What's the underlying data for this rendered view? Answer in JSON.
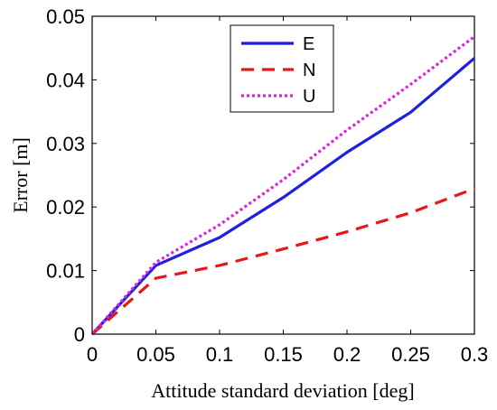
{
  "chart_data": {
    "type": "line",
    "title": "",
    "xlabel": "Attitude standard deviation [deg]",
    "ylabel": "Error [m]",
    "xlim": [
      0,
      0.3
    ],
    "ylim": [
      0,
      0.05
    ],
    "x_ticks": [
      0,
      0.05,
      0.1,
      0.15,
      0.2,
      0.25,
      0.3
    ],
    "x_tick_labels": [
      "0",
      "0.05",
      "0.1",
      "0.15",
      "0.2",
      "0.25",
      "0.3"
    ],
    "y_ticks": [
      0,
      0.01,
      0.02,
      0.03,
      0.04,
      0.05
    ],
    "y_tick_labels": [
      "0",
      "0.01",
      "0.02",
      "0.03",
      "0.04",
      "0.05"
    ],
    "grid": false,
    "legend_position": "top-center",
    "x": [
      0,
      0.05,
      0.1,
      0.15,
      0.2,
      0.25,
      0.3
    ],
    "series": [
      {
        "name": "E",
        "values": [
          0,
          0.0108,
          0.0152,
          0.0215,
          0.0286,
          0.0349,
          0.0434
        ],
        "color": "#1f1fe0",
        "style": "solid"
      },
      {
        "name": "N",
        "values": [
          0,
          0.0088,
          0.0108,
          0.0134,
          0.0161,
          0.0191,
          0.0229
        ],
        "color": "#e8161b",
        "style": "dashed"
      },
      {
        "name": "U",
        "values": [
          0,
          0.0113,
          0.0172,
          0.0243,
          0.0321,
          0.0393,
          0.0468
        ],
        "color": "#e020e0",
        "style": "dotted"
      }
    ]
  }
}
